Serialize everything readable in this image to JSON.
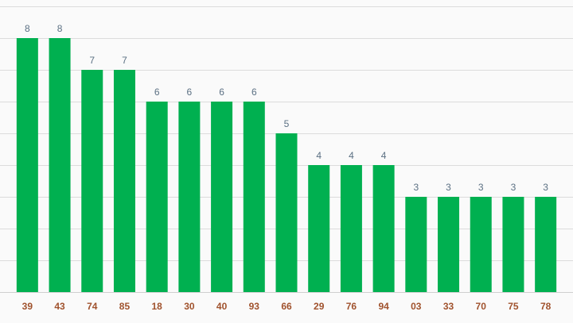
{
  "chart_data": {
    "type": "bar",
    "categories": [
      "39",
      "43",
      "74",
      "85",
      "18",
      "30",
      "40",
      "93",
      "66",
      "29",
      "76",
      "94",
      "03",
      "33",
      "70",
      "75",
      "78"
    ],
    "values": [
      8,
      8,
      7,
      7,
      6,
      6,
      6,
      6,
      5,
      4,
      4,
      4,
      3,
      3,
      3,
      3,
      3
    ],
    "ylim": [
      0,
      9
    ],
    "grid": true,
    "data_labels": true,
    "legend": "none"
  },
  "colors": {
    "bar": "#00b050",
    "value_label": "#5b7083",
    "tick_label": "#a0522d",
    "grid": "#dcdcdc"
  }
}
